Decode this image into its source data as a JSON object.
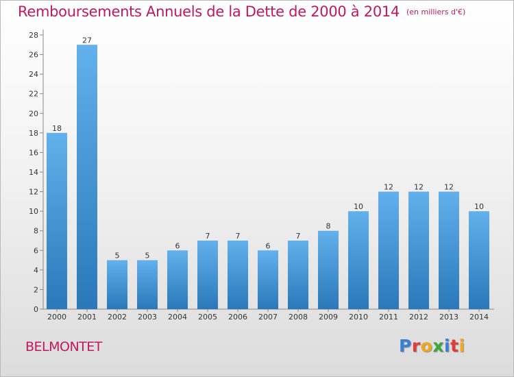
{
  "header": {
    "title": "Remboursements Annuels de la Dette de 2000 à 2014",
    "subtitle": "(en milliers d'€)"
  },
  "footer": {
    "commune": "BELMONTET",
    "logo_letters": [
      "P",
      "r",
      "o",
      "x",
      "i",
      "t",
      "i"
    ],
    "logo_colors": [
      "#3b7fd6",
      "#e23b3b",
      "#f0a81e",
      "#3aa83a",
      "#3b7fd6",
      "#e23b3b",
      "#f0a81e"
    ]
  },
  "colors": {
    "title": "#c2185b",
    "bar_top": "#62b1ec",
    "bar_bottom": "#2a78b8",
    "axis_text": "#333333"
  },
  "chart_data": {
    "type": "bar",
    "categories": [
      "2000",
      "2001",
      "2002",
      "2003",
      "2004",
      "2005",
      "2006",
      "2007",
      "2008",
      "2009",
      "2010",
      "2011",
      "2012",
      "2013",
      "2014"
    ],
    "values": [
      18,
      27,
      5,
      5,
      6,
      7,
      7,
      6,
      7,
      8,
      10,
      12,
      12,
      12,
      10
    ],
    "data_labels": [
      "18",
      "27",
      "5",
      "5",
      "6",
      "7",
      "7",
      "6",
      "7",
      "8",
      "10",
      "12",
      "12",
      "12",
      "10"
    ],
    "y_ticks": [
      "0",
      "2",
      "4",
      "6",
      "8",
      "10",
      "12",
      "14",
      "16",
      "18",
      "20",
      "22",
      "24",
      "26",
      "28"
    ],
    "ylim": [
      0,
      28
    ],
    "grid": false,
    "legend": "none"
  }
}
